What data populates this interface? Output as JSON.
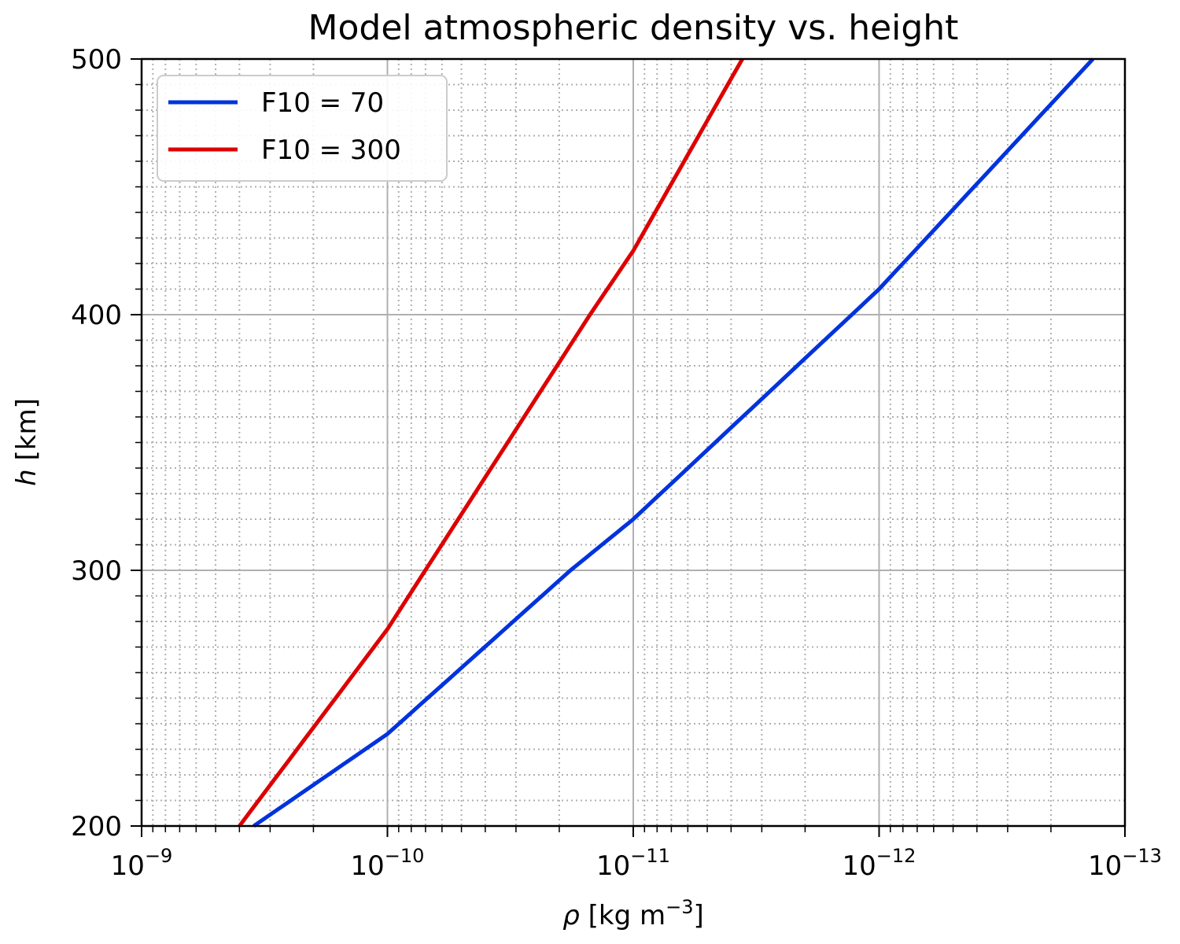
{
  "chart_data": {
    "type": "line",
    "title": "Model atmospheric density vs. height",
    "xlabel": {
      "symbol": "ρ",
      "text": " [kg m",
      "exp": "−3",
      "close": "]"
    },
    "ylabel": {
      "symbol": "h",
      "text": " [km]"
    },
    "x_scale": "log",
    "x_reversed": true,
    "xlim": [
      1e-09,
      1e-13
    ],
    "ylim": [
      200,
      500
    ],
    "xticks": [
      {
        "value": 1e-09,
        "base": "10",
        "exp": "−9"
      },
      {
        "value": 1e-10,
        "base": "10",
        "exp": "−10"
      },
      {
        "value": 1e-11,
        "base": "10",
        "exp": "−11"
      },
      {
        "value": 1e-12,
        "base": "10",
        "exp": "−12"
      },
      {
        "value": 1e-13,
        "base": "10",
        "exp": "−13"
      }
    ],
    "yticks": [
      200,
      300,
      400,
      500
    ],
    "grid": {
      "major": true,
      "minor": true
    },
    "legend_position": "top-left",
    "series": [
      {
        "name": "F10 = 70",
        "color": "#0033dd",
        "points": [
          [
            3.5e-10,
            200
          ],
          [
            1e-10,
            236
          ],
          [
            1.8e-11,
            300
          ],
          [
            1e-11,
            320
          ],
          [
            1e-12,
            410
          ],
          [
            1.35e-13,
            500
          ]
        ]
      },
      {
        "name": "F10 = 300",
        "color": "#dd0000",
        "points": [
          [
            4e-10,
            200
          ],
          [
            1e-10,
            277
          ],
          [
            1.5e-11,
            400
          ],
          [
            1e-11,
            425
          ],
          [
            3.6e-12,
            500
          ]
        ]
      }
    ]
  }
}
